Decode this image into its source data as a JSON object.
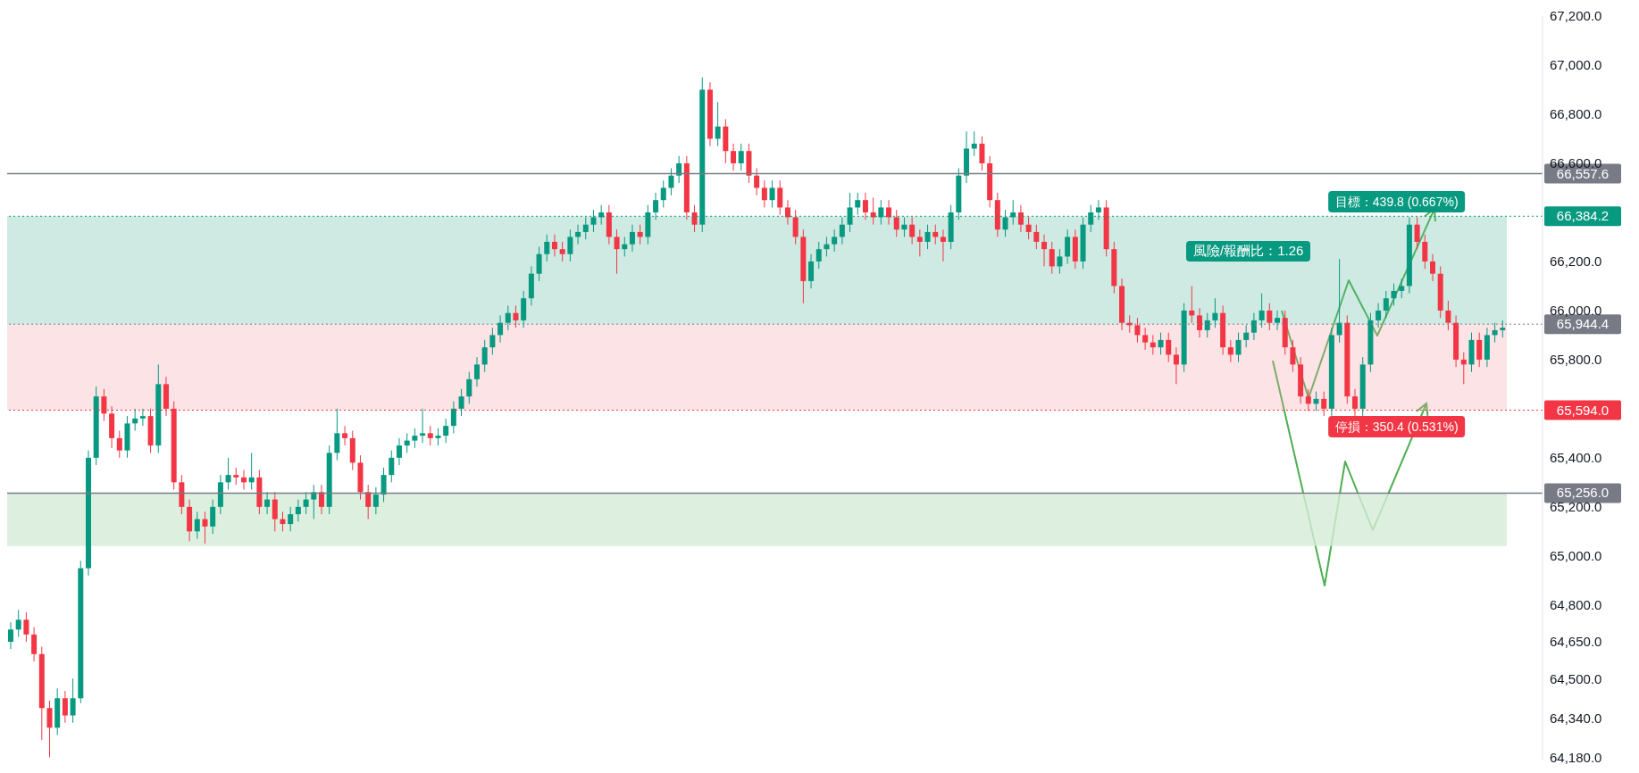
{
  "chart_data": {
    "type": "candlestick",
    "categories": [
      null,
      null,
      null,
      null,
      null,
      null,
      null,
      null,
      null,
      null,
      null,
      null,
      null,
      null,
      null,
      null,
      null,
      null,
      null,
      null,
      null,
      null,
      null,
      null,
      null,
      null,
      null,
      null,
      null,
      null,
      null,
      null,
      null,
      null,
      null,
      null,
      null,
      null,
      null,
      null,
      null,
      null,
      null,
      null,
      null,
      null,
      null,
      null,
      null,
      null,
      null,
      null,
      null,
      null,
      null,
      null,
      null,
      null,
      null,
      null,
      null,
      null,
      null,
      null,
      null,
      null,
      null,
      null,
      null,
      null,
      null,
      null,
      null,
      null,
      null,
      null,
      null,
      null,
      null,
      null,
      null,
      null,
      null,
      null,
      null,
      null,
      null,
      null,
      null,
      null,
      null,
      null,
      null,
      null,
      null,
      null,
      null,
      null,
      null,
      null,
      null,
      null,
      null,
      null,
      null,
      null,
      null,
      null,
      null,
      null,
      null,
      null,
      null,
      null,
      null,
      null,
      null,
      null,
      null,
      null,
      null,
      null,
      null,
      null,
      null,
      null,
      null,
      null,
      null,
      null,
      null,
      null,
      null,
      null,
      null,
      null,
      null,
      null,
      null,
      null,
      null,
      null,
      null,
      null,
      null,
      null,
      null,
      null,
      null,
      null,
      null,
      null,
      null,
      null,
      null,
      null,
      null,
      null,
      null,
      null,
      null,
      null,
      null,
      null,
      null,
      null,
      null,
      null,
      null,
      null,
      null,
      null,
      null,
      null,
      null,
      null,
      null,
      null,
      null,
      null,
      null,
      null,
      null,
      null,
      null,
      null,
      null,
      null,
      null,
      null,
      null,
      null,
      null
    ],
    "ohlc": [
      [
        64650,
        64730,
        64620,
        64700
      ],
      [
        64700,
        64780,
        64670,
        64740
      ],
      [
        64740,
        64770,
        64650,
        64680
      ],
      [
        64680,
        64710,
        64570,
        64600
      ],
      [
        64600,
        64630,
        64250,
        64380
      ],
      [
        64380,
        64410,
        64180,
        64300
      ],
      [
        64300,
        64460,
        64270,
        64420
      ],
      [
        64420,
        64450,
        64320,
        64350
      ],
      [
        64350,
        64500,
        64320,
        64420
      ],
      [
        64420,
        64980,
        64400,
        64950
      ],
      [
        64950,
        65430,
        64920,
        65400
      ],
      [
        65400,
        65690,
        65370,
        65650
      ],
      [
        65650,
        65680,
        65550,
        65580
      ],
      [
        65580,
        65610,
        65440,
        65480
      ],
      [
        65480,
        65510,
        65400,
        65430
      ],
      [
        65430,
        65570,
        65400,
        65540
      ],
      [
        65540,
        65600,
        65510,
        65560
      ],
      [
        65560,
        65600,
        65530,
        65570
      ],
      [
        65570,
        65600,
        65420,
        65450
      ],
      [
        65450,
        65780,
        65420,
        65700
      ],
      [
        65700,
        65730,
        65570,
        65600
      ],
      [
        65600,
        65630,
        65270,
        65300
      ],
      [
        65300,
        65330,
        65170,
        65200
      ],
      [
        65200,
        65230,
        65060,
        65100
      ],
      [
        65100,
        65180,
        65070,
        65150
      ],
      [
        65150,
        65180,
        65050,
        65120
      ],
      [
        65120,
        65230,
        65090,
        65200
      ],
      [
        65200,
        65330,
        65170,
        65300
      ],
      [
        65300,
        65400,
        65270,
        65330
      ],
      [
        65330,
        65360,
        65290,
        65320
      ],
      [
        65320,
        65350,
        65270,
        65300
      ],
      [
        65300,
        65420,
        65270,
        65320
      ],
      [
        65320,
        65350,
        65170,
        65200
      ],
      [
        65200,
        65260,
        65170,
        65230
      ],
      [
        65230,
        65260,
        65100,
        65150
      ],
      [
        65150,
        65180,
        65100,
        65130
      ],
      [
        65130,
        65200,
        65100,
        65170
      ],
      [
        65170,
        65230,
        65140,
        65200
      ],
      [
        65200,
        65260,
        65170,
        65230
      ],
      [
        65230,
        65290,
        65150,
        65260
      ],
      [
        65260,
        65290,
        65170,
        65200
      ],
      [
        65200,
        65450,
        65170,
        65420
      ],
      [
        65420,
        65600,
        65390,
        65500
      ],
      [
        65500,
        65530,
        65450,
        65480
      ],
      [
        65480,
        65510,
        65350,
        65380
      ],
      [
        65380,
        65410,
        65230,
        65260
      ],
      [
        65260,
        65290,
        65150,
        65200
      ],
      [
        65200,
        65280,
        65170,
        65250
      ],
      [
        65250,
        65360,
        65220,
        65330
      ],
      [
        65330,
        65430,
        65300,
        65400
      ],
      [
        65400,
        65480,
        65370,
        65450
      ],
      [
        65450,
        65500,
        65420,
        65470
      ],
      [
        65470,
        65520,
        65440,
        65490
      ],
      [
        65490,
        65600,
        65460,
        65500
      ],
      [
        65500,
        65530,
        65450,
        65480
      ],
      [
        65480,
        65520,
        65450,
        65490
      ],
      [
        65490,
        65560,
        65460,
        65530
      ],
      [
        65530,
        65630,
        65500,
        65600
      ],
      [
        65600,
        65680,
        65570,
        65650
      ],
      [
        65650,
        65750,
        65620,
        65720
      ],
      [
        65720,
        65810,
        65690,
        65780
      ],
      [
        65780,
        65880,
        65750,
        65850
      ],
      [
        65850,
        65930,
        65820,
        65900
      ],
      [
        65900,
        65980,
        65870,
        65950
      ],
      [
        65950,
        66020,
        65920,
        65990
      ],
      [
        65990,
        66020,
        65930,
        65960
      ],
      [
        65960,
        66080,
        65930,
        66050
      ],
      [
        66050,
        66180,
        66020,
        66150
      ],
      [
        66150,
        66260,
        66120,
        66230
      ],
      [
        66230,
        66310,
        66200,
        66280
      ],
      [
        66280,
        66310,
        66220,
        66250
      ],
      [
        66250,
        66280,
        66200,
        66230
      ],
      [
        66230,
        66330,
        66200,
        66300
      ],
      [
        66300,
        66350,
        66270,
        66320
      ],
      [
        66320,
        66380,
        66290,
        66350
      ],
      [
        66350,
        66410,
        66320,
        66380
      ],
      [
        66380,
        66430,
        66350,
        66400
      ],
      [
        66400,
        66430,
        66270,
        66300
      ],
      [
        66300,
        66330,
        66150,
        66250
      ],
      [
        66250,
        66300,
        66220,
        66270
      ],
      [
        66270,
        66350,
        66240,
        66320
      ],
      [
        66320,
        66350,
        66270,
        66300
      ],
      [
        66300,
        66430,
        66270,
        66400
      ],
      [
        66400,
        66480,
        66370,
        66450
      ],
      [
        66450,
        66530,
        66420,
        66500
      ],
      [
        66500,
        66580,
        66470,
        66550
      ],
      [
        66550,
        66630,
        66520,
        66600
      ],
      [
        66600,
        66630,
        66370,
        66400
      ],
      [
        66400,
        66430,
        66320,
        66350
      ],
      [
        66350,
        66950,
        66320,
        66900
      ],
      [
        66900,
        66930,
        66670,
        66700
      ],
      [
        66700,
        66850,
        66670,
        66750
      ],
      [
        66750,
        66780,
        66600,
        66650
      ],
      [
        66650,
        66680,
        66570,
        66600
      ],
      [
        66600,
        66680,
        66570,
        66650
      ],
      [
        66650,
        66680,
        66520,
        66550
      ],
      [
        66550,
        66580,
        66470,
        66500
      ],
      [
        66500,
        66530,
        66420,
        66450
      ],
      [
        66450,
        66530,
        66420,
        66500
      ],
      [
        66500,
        66530,
        66390,
        66420
      ],
      [
        66420,
        66450,
        66350,
        66380
      ],
      [
        66380,
        66410,
        66270,
        66300
      ],
      [
        66300,
        66330,
        66030,
        66120
      ],
      [
        66120,
        66230,
        66090,
        66200
      ],
      [
        66200,
        66280,
        66170,
        66250
      ],
      [
        66250,
        66300,
        66220,
        66270
      ],
      [
        66270,
        66330,
        66240,
        66300
      ],
      [
        66300,
        66380,
        66270,
        66350
      ],
      [
        66350,
        66480,
        66320,
        66420
      ],
      [
        66420,
        66480,
        66390,
        66450
      ],
      [
        66450,
        66480,
        66370,
        66400
      ],
      [
        66400,
        66460,
        66350,
        66380
      ],
      [
        66380,
        66450,
        66350,
        66420
      ],
      [
        66420,
        66450,
        66350,
        66380
      ],
      [
        66380,
        66410,
        66300,
        66330
      ],
      [
        66330,
        66380,
        66300,
        66350
      ],
      [
        66350,
        66380,
        66270,
        66300
      ],
      [
        66300,
        66330,
        66220,
        66280
      ],
      [
        66280,
        66350,
        66250,
        66320
      ],
      [
        66320,
        66350,
        66270,
        66300
      ],
      [
        66300,
        66330,
        66200,
        66280
      ],
      [
        66280,
        66430,
        66250,
        66400
      ],
      [
        66400,
        66580,
        66370,
        66550
      ],
      [
        66550,
        66730,
        66520,
        66660
      ],
      [
        66660,
        66730,
        66630,
        66680
      ],
      [
        66680,
        66710,
        66570,
        66600
      ],
      [
        66600,
        66630,
        66420,
        66450
      ],
      [
        66450,
        66480,
        66300,
        66330
      ],
      [
        66330,
        66410,
        66300,
        66380
      ],
      [
        66380,
        66450,
        66350,
        66400
      ],
      [
        66400,
        66430,
        66320,
        66350
      ],
      [
        66350,
        66380,
        66290,
        66320
      ],
      [
        66320,
        66350,
        66250,
        66280
      ],
      [
        66280,
        66310,
        66180,
        66250
      ],
      [
        66250,
        66280,
        66150,
        66180
      ],
      [
        66180,
        66250,
        66150,
        66220
      ],
      [
        66220,
        66330,
        66190,
        66300
      ],
      [
        66300,
        66330,
        66170,
        66200
      ],
      [
        66200,
        66380,
        66170,
        66350
      ],
      [
        66350,
        66430,
        66320,
        66400
      ],
      [
        66400,
        66450,
        66370,
        66420
      ],
      [
        66420,
        66450,
        66220,
        66250
      ],
      [
        66250,
        66280,
        66070,
        66100
      ],
      [
        66100,
        66130,
        65920,
        65950
      ],
      [
        65950,
        65980,
        65910,
        65940
      ],
      [
        65940,
        65970,
        65870,
        65900
      ],
      [
        65900,
        65930,
        65840,
        65870
      ],
      [
        65870,
        65900,
        65820,
        65850
      ],
      [
        65850,
        65910,
        65820,
        65880
      ],
      [
        65880,
        65910,
        65790,
        65820
      ],
      [
        65820,
        65850,
        65700,
        65780
      ],
      [
        65780,
        66030,
        65750,
        66000
      ],
      [
        66000,
        66100,
        65950,
        65980
      ],
      [
        65980,
        66010,
        65890,
        65920
      ],
      [
        65920,
        65990,
        65890,
        65960
      ],
      [
        65960,
        66050,
        65930,
        65990
      ],
      [
        65990,
        66020,
        65820,
        65850
      ],
      [
        65850,
        65880,
        65790,
        65820
      ],
      [
        65820,
        65910,
        65790,
        65880
      ],
      [
        65880,
        65940,
        65850,
        65910
      ],
      [
        65910,
        65990,
        65880,
        65960
      ],
      [
        65960,
        66070,
        65930,
        66000
      ],
      [
        66000,
        66030,
        65920,
        65950
      ],
      [
        65950,
        66000,
        65920,
        65970
      ],
      [
        65970,
        66000,
        65820,
        65850
      ],
      [
        65850,
        65880,
        65750,
        65780
      ],
      [
        65780,
        65810,
        65620,
        65650
      ],
      [
        65650,
        65680,
        65590,
        65620
      ],
      [
        65620,
        65670,
        65590,
        65640
      ],
      [
        65640,
        65670,
        65570,
        65600
      ],
      [
        65600,
        65930,
        65570,
        65900
      ],
      [
        65900,
        66210,
        65870,
        65950
      ],
      [
        65950,
        65980,
        65620,
        65650
      ],
      [
        65650,
        65680,
        65570,
        65600
      ],
      [
        65600,
        65810,
        65570,
        65780
      ],
      [
        65780,
        65990,
        65750,
        65960
      ],
      [
        65960,
        66030,
        65930,
        66000
      ],
      [
        66000,
        66080,
        65970,
        66050
      ],
      [
        66050,
        66110,
        66020,
        66080
      ],
      [
        66080,
        66130,
        66050,
        66100
      ],
      [
        66100,
        66380,
        66070,
        66350
      ],
      [
        66350,
        66380,
        66250,
        66280
      ],
      [
        66280,
        66310,
        66170,
        66200
      ],
      [
        66200,
        66230,
        66120,
        66150
      ],
      [
        66150,
        66180,
        65970,
        66000
      ],
      [
        66000,
        66040,
        65920,
        65950
      ],
      [
        65950,
        65980,
        65770,
        65800
      ],
      [
        65800,
        65830,
        65700,
        65780
      ],
      [
        65780,
        65910,
        65750,
        65880
      ],
      [
        65880,
        65910,
        65770,
        65800
      ],
      [
        65800,
        65930,
        65770,
        65900
      ],
      [
        65900,
        65950,
        65870,
        65920
      ],
      [
        65920,
        65960,
        65890,
        65930
      ]
    ],
    "colors": [
      "#089981",
      "#089981",
      "#f23645",
      "#f23645",
      "#f23645",
      "#f23645",
      "#089981",
      "#f23645",
      "#089981",
      "#089981",
      "#089981",
      "#089981",
      "#f23645",
      "#f23645",
      "#f23645",
      "#089981",
      "#089981",
      "#089981",
      "#f23645",
      "#089981",
      "#f23645",
      "#f23645",
      "#f23645",
      "#f23645",
      "#089981",
      "#f23645",
      "#089981",
      "#089981",
      "#089981",
      "#f23645",
      "#f23645",
      "#089981",
      "#f23645",
      "#089981",
      "#f23645",
      "#f23645",
      "#089981",
      "#089981",
      "#089981",
      "#089981",
      "#f23645",
      "#089981",
      "#089981",
      "#f23645",
      "#f23645",
      "#f23645",
      "#f23645",
      "#089981",
      "#089981",
      "#089981",
      "#089981",
      "#089981",
      "#089981",
      "#089981",
      "#f23645",
      "#089981",
      "#089981",
      "#089981",
      "#089981",
      "#089981",
      "#089981",
      "#089981",
      "#089981",
      "#089981",
      "#089981",
      "#f23645",
      "#089981",
      "#089981",
      "#089981",
      "#089981",
      "#f23645",
      "#f23645",
      "#089981",
      "#089981",
      "#089981",
      "#089981",
      "#089981",
      "#f23645",
      "#f23645",
      "#089981",
      "#089981",
      "#f23645",
      "#089981",
      "#089981",
      "#089981",
      "#089981",
      "#089981",
      "#f23645",
      "#f23645",
      "#089981",
      "#f23645",
      "#089981",
      "#f23645",
      "#f23645",
      "#089981",
      "#f23645",
      "#f23645",
      "#f23645",
      "#089981",
      "#f23645",
      "#f23645",
      "#f23645",
      "#f23645",
      "#089981",
      "#089981",
      "#089981",
      "#089981",
      "#089981",
      "#089981",
      "#089981",
      "#f23645",
      "#f23645",
      "#089981",
      "#f23645",
      "#f23645",
      "#089981",
      "#f23645",
      "#f23645",
      "#089981",
      "#f23645",
      "#f23645",
      "#089981",
      "#089981",
      "#089981",
      "#089981",
      "#f23645",
      "#f23645",
      "#f23645",
      "#089981",
      "#089981",
      "#f23645",
      "#f23645",
      "#f23645",
      "#f23645",
      "#f23645",
      "#089981",
      "#089981",
      "#f23645",
      "#089981",
      "#089981",
      "#089981",
      "#f23645",
      "#f23645",
      "#f23645",
      "#f23645",
      "#f23645",
      "#f23645",
      "#f23645",
      "#089981",
      "#f23645",
      "#f23645",
      "#089981",
      "#f23645",
      "#f23645",
      "#089981",
      "#089981",
      "#f23645",
      "#f23645",
      "#089981",
      "#089981",
      "#089981",
      "#089981",
      "#f23645",
      "#089981",
      "#f23645",
      "#f23645",
      "#f23645",
      "#f23645",
      "#089981",
      "#f23645",
      "#089981",
      "#089981",
      "#f23645",
      "#f23645",
      "#089981",
      "#089981",
      "#089981",
      "#089981",
      "#089981",
      "#089981",
      "#089981",
      "#f23645",
      "#f23645",
      "#f23645",
      "#f23645",
      "#f23645",
      "#f23645",
      "#f23645",
      "#089981",
      "#f23645",
      "#089981",
      "#089981",
      "#089981"
    ],
    "ylim": [
      64170,
      67200
    ],
    "yticks": [
      {
        "value": 67200,
        "label": "67,200.0"
      },
      {
        "value": 67000,
        "label": "67,000.0"
      },
      {
        "value": 66800,
        "label": "66,800.0"
      },
      {
        "value": 66600,
        "label": "66,600.0"
      },
      {
        "value": 66200,
        "label": "66,200.0"
      },
      {
        "value": 66000,
        "label": "66,000.0"
      },
      {
        "value": 65800,
        "label": "65,800.0"
      },
      {
        "value": 65400,
        "label": "65,400.0"
      },
      {
        "value": 65200,
        "label": "65,200.0"
      },
      {
        "value": 65000,
        "label": "65,000.0"
      },
      {
        "value": 64800,
        "label": "64,800.0"
      },
      {
        "value": 64650,
        "label": "64,650.0"
      },
      {
        "value": 64500,
        "label": "64,500.0"
      },
      {
        "value": 64340,
        "label": "64,340.0"
      },
      {
        "value": 64180,
        "label": "64,180.0"
      }
    ],
    "tick_labels": "y",
    "ref_lines": [
      {
        "axis": "y",
        "value": 66557.6,
        "label": "66,557.6",
        "color": "#787b86",
        "line_style": "solid"
      },
      {
        "axis": "y",
        "value": 65256,
        "label": "65,256.0",
        "color": "#787b86",
        "line_style": "solid"
      },
      {
        "axis": "y",
        "value": 66384.2,
        "label": "66,384.2",
        "color": "#089981",
        "line_style": "dotted"
      },
      {
        "axis": "y",
        "value": 65944.4,
        "label": "65,944.4",
        "color": "#787b86",
        "line_style": "dotted"
      },
      {
        "axis": "y",
        "value": 65594,
        "label": "65,594.0",
        "color": "#f23645",
        "line_style": "dotted"
      }
    ],
    "bands": [
      {
        "axis": "y",
        "from": 65040,
        "to": 65256,
        "color": "#d5ecd7"
      },
      {
        "axis": "y",
        "from": 65944.4,
        "to": 66384.2,
        "label": "目標：439.8 (0.667%)",
        "color": "#5fb8a0"
      },
      {
        "axis": "y",
        "from": 65594,
        "to": 65944.4,
        "label": "停損：350.4 (0.531%)",
        "color": "#f5a3aa"
      }
    ],
    "annotations": [
      "風險/報酬比：1.26"
    ]
  }
}
